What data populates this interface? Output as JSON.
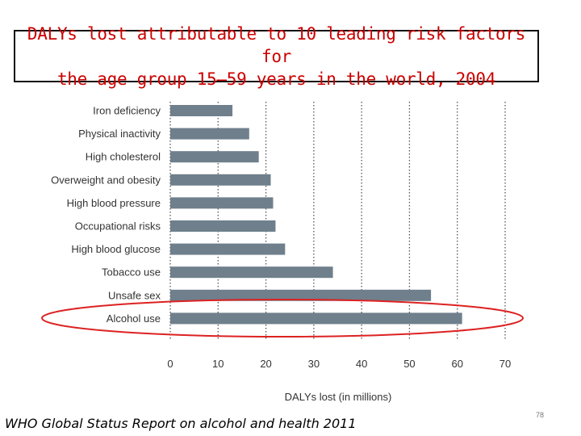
{
  "title": "DALYs lost attributable to 10 leading risk factors for\nthe age group 15–59 years in the world, 2004",
  "source": "WHO Global Status Report on alcohol and health 2011",
  "page_number": "78",
  "colors": {
    "bar": "#6f7f8c",
    "highlight": "#dd2222",
    "title_text": "#cc0000",
    "grid": "#555555"
  },
  "chart_data": {
    "type": "bar",
    "orientation": "horizontal",
    "categories": [
      "Iron deficiency",
      "Physical inactivity",
      "High cholesterol",
      "Overweight and obesity",
      "High blood pressure",
      "Occupational risks",
      "High blood glucose",
      "Tobacco use",
      "Unsafe sex",
      "Alcohol use"
    ],
    "values": [
      13,
      16.5,
      18.5,
      21,
      21.5,
      22,
      24,
      34,
      54.5,
      61
    ],
    "xlim": [
      0,
      70
    ],
    "ticks": [
      0,
      10,
      20,
      30,
      40,
      50,
      60,
      70
    ],
    "tick_labels": [
      "0",
      "10",
      "20",
      "30",
      "40",
      "50",
      "60",
      "70"
    ],
    "xlabel": "DALYs lost (in millions)",
    "highlighted_category": "Alcohol use",
    "grid": true
  }
}
